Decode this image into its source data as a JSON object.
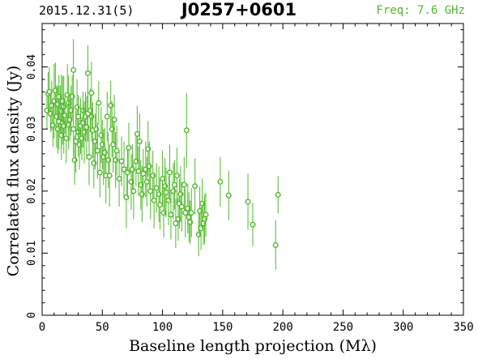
{
  "header": {
    "date": "2015.12.31(5)",
    "source": "J0257+0601",
    "freq": "Freq: 7.6 GHz"
  },
  "colors": {
    "series": "#4fb828",
    "axis": "#000000"
  },
  "chart_data": {
    "type": "scatter",
    "xlabel": "Baseline length projection (Mλ)",
    "ylabel": "Correlated flux density (Jy)",
    "xlim": [
      0,
      350
    ],
    "ylim": [
      0,
      0.047
    ],
    "xticks": [
      0,
      50,
      100,
      150,
      200,
      250,
      300,
      350
    ],
    "xtick_labels": [
      "0",
      "50",
      "100",
      "150",
      "200",
      "250",
      "300",
      "350"
    ],
    "yticks": [
      0,
      0.01,
      0.02,
      0.03,
      0.04
    ],
    "ytick_labels": [
      "0",
      "0.01",
      "0.02",
      "0.03",
      "0.04"
    ],
    "grid": false,
    "points": [
      {
        "x": 4,
        "y": 0.033,
        "e": 0.003
      },
      {
        "x": 5,
        "y": 0.0357,
        "e": 0.0035
      },
      {
        "x": 6,
        "y": 0.036,
        "e": 0.004
      },
      {
        "x": 7,
        "y": 0.0325,
        "e": 0.003
      },
      {
        "x": 8,
        "y": 0.0338,
        "e": 0.004
      },
      {
        "x": 9,
        "y": 0.0306,
        "e": 0.0035
      },
      {
        "x": 10,
        "y": 0.0345,
        "e": 0.006
      },
      {
        "x": 11,
        "y": 0.0362,
        "e": 0.0045
      },
      {
        "x": 12,
        "y": 0.032,
        "e": 0.005
      },
      {
        "x": 13,
        "y": 0.03,
        "e": 0.004
      },
      {
        "x": 13,
        "y": 0.034,
        "e": 0.003
      },
      {
        "x": 14,
        "y": 0.0312,
        "e": 0.0045
      },
      {
        "x": 14,
        "y": 0.0352,
        "e": 0.0035
      },
      {
        "x": 15,
        "y": 0.033,
        "e": 0.004
      },
      {
        "x": 16,
        "y": 0.0328,
        "e": 0.006
      },
      {
        "x": 16,
        "y": 0.029,
        "e": 0.004
      },
      {
        "x": 17,
        "y": 0.031,
        "e": 0.0035
      },
      {
        "x": 17,
        "y": 0.0345,
        "e": 0.004
      },
      {
        "x": 18,
        "y": 0.0336,
        "e": 0.005
      },
      {
        "x": 18,
        "y": 0.0305,
        "e": 0.0045
      },
      {
        "x": 19,
        "y": 0.0322,
        "e": 0.003
      },
      {
        "x": 20,
        "y": 0.0285,
        "e": 0.004
      },
      {
        "x": 21,
        "y": 0.0355,
        "e": 0.005
      },
      {
        "x": 22,
        "y": 0.0342,
        "e": 0.0045
      },
      {
        "x": 22,
        "y": 0.0307,
        "e": 0.004
      },
      {
        "x": 23,
        "y": 0.0315,
        "e": 0.0035
      },
      {
        "x": 24,
        "y": 0.033,
        "e": 0.004
      },
      {
        "x": 25,
        "y": 0.0352,
        "e": 0.0035
      },
      {
        "x": 26,
        "y": 0.0395,
        "e": 0.005
      },
      {
        "x": 26,
        "y": 0.03,
        "e": 0.0045
      },
      {
        "x": 27,
        "y": 0.025,
        "e": 0.004
      },
      {
        "x": 28,
        "y": 0.028,
        "e": 0.005
      },
      {
        "x": 29,
        "y": 0.0335,
        "e": 0.0045
      },
      {
        "x": 30,
        "y": 0.0295,
        "e": 0.004
      },
      {
        "x": 30,
        "y": 0.032,
        "e": 0.0035
      },
      {
        "x": 31,
        "y": 0.0275,
        "e": 0.004
      },
      {
        "x": 32,
        "y": 0.0305,
        "e": 0.0045
      },
      {
        "x": 33,
        "y": 0.0285,
        "e": 0.0035
      },
      {
        "x": 34,
        "y": 0.033,
        "e": 0.003
      },
      {
        "x": 34,
        "y": 0.031,
        "e": 0.004
      },
      {
        "x": 35,
        "y": 0.0295,
        "e": 0.005
      },
      {
        "x": 36,
        "y": 0.032,
        "e": 0.004
      },
      {
        "x": 37,
        "y": 0.0303,
        "e": 0.005
      },
      {
        "x": 38,
        "y": 0.0325,
        "e": 0.0045
      },
      {
        "x": 38,
        "y": 0.039,
        "e": 0.0045
      },
      {
        "x": 39,
        "y": 0.0255,
        "e": 0.0045
      },
      {
        "x": 40,
        "y": 0.033,
        "e": 0.0035
      },
      {
        "x": 41,
        "y": 0.032,
        "e": 0.004
      },
      {
        "x": 41,
        "y": 0.0358,
        "e": 0.005
      },
      {
        "x": 42,
        "y": 0.0298,
        "e": 0.0045
      },
      {
        "x": 43,
        "y": 0.0245,
        "e": 0.004
      },
      {
        "x": 44,
        "y": 0.028,
        "e": 0.0045
      },
      {
        "x": 45,
        "y": 0.03,
        "e": 0.004
      },
      {
        "x": 46,
        "y": 0.0265,
        "e": 0.0045
      },
      {
        "x": 47,
        "y": 0.0342,
        "e": 0.0035
      },
      {
        "x": 48,
        "y": 0.023,
        "e": 0.004
      },
      {
        "x": 49,
        "y": 0.029,
        "e": 0.0045
      },
      {
        "x": 50,
        "y": 0.0275,
        "e": 0.004
      },
      {
        "x": 51,
        "y": 0.0255,
        "e": 0.0045
      },
      {
        "x": 52,
        "y": 0.0262,
        "e": 0.004
      },
      {
        "x": 53,
        "y": 0.0225,
        "e": 0.0045
      },
      {
        "x": 54,
        "y": 0.032,
        "e": 0.004
      },
      {
        "x": 55,
        "y": 0.025,
        "e": 0.0045
      },
      {
        "x": 56,
        "y": 0.0225,
        "e": 0.005
      },
      {
        "x": 57,
        "y": 0.0338,
        "e": 0.004
      },
      {
        "x": 58,
        "y": 0.03,
        "e": 0.0045
      },
      {
        "x": 59,
        "y": 0.0275,
        "e": 0.0045
      },
      {
        "x": 60,
        "y": 0.0315,
        "e": 0.004
      },
      {
        "x": 61,
        "y": 0.025,
        "e": 0.0045
      },
      {
        "x": 62,
        "y": 0.0265,
        "e": 0.004
      },
      {
        "x": 64,
        "y": 0.022,
        "e": 0.0045
      },
      {
        "x": 66,
        "y": 0.0248,
        "e": 0.004
      },
      {
        "x": 68,
        "y": 0.0235,
        "e": 0.0045
      },
      {
        "x": 70,
        "y": 0.019,
        "e": 0.005
      },
      {
        "x": 71,
        "y": 0.023,
        "e": 0.004
      },
      {
        "x": 72,
        "y": 0.027,
        "e": 0.004
      },
      {
        "x": 74,
        "y": 0.0215,
        "e": 0.0045
      },
      {
        "x": 75,
        "y": 0.0235,
        "e": 0.004
      },
      {
        "x": 76,
        "y": 0.02,
        "e": 0.0045
      },
      {
        "x": 78,
        "y": 0.0248,
        "e": 0.004
      },
      {
        "x": 79,
        "y": 0.0292,
        "e": 0.0045
      },
      {
        "x": 80,
        "y": 0.0232,
        "e": 0.004
      },
      {
        "x": 81,
        "y": 0.028,
        "e": 0.0045
      },
      {
        "x": 82,
        "y": 0.021,
        "e": 0.004
      },
      {
        "x": 83,
        "y": 0.0195,
        "e": 0.0045
      },
      {
        "x": 84,
        "y": 0.0228,
        "e": 0.004
      },
      {
        "x": 86,
        "y": 0.0235,
        "e": 0.0045
      },
      {
        "x": 87,
        "y": 0.0215,
        "e": 0.004
      },
      {
        "x": 88,
        "y": 0.0268,
        "e": 0.0045
      },
      {
        "x": 89,
        "y": 0.024,
        "e": 0.004
      },
      {
        "x": 90,
        "y": 0.02,
        "e": 0.0045
      },
      {
        "x": 92,
        "y": 0.0225,
        "e": 0.004
      },
      {
        "x": 93,
        "y": 0.0185,
        "e": 0.0045
      },
      {
        "x": 95,
        "y": 0.0205,
        "e": 0.004
      },
      {
        "x": 97,
        "y": 0.0195,
        "e": 0.0045
      },
      {
        "x": 98,
        "y": 0.0178,
        "e": 0.004
      },
      {
        "x": 100,
        "y": 0.022,
        "e": 0.0045
      },
      {
        "x": 101,
        "y": 0.0165,
        "e": 0.004
      },
      {
        "x": 102,
        "y": 0.0208,
        "e": 0.0045
      },
      {
        "x": 103,
        "y": 0.0198,
        "e": 0.004
      },
      {
        "x": 105,
        "y": 0.0185,
        "e": 0.004
      },
      {
        "x": 106,
        "y": 0.023,
        "e": 0.0045
      },
      {
        "x": 107,
        "y": 0.0162,
        "e": 0.004
      },
      {
        "x": 109,
        "y": 0.02,
        "e": 0.0045
      },
      {
        "x": 110,
        "y": 0.021,
        "e": 0.004
      },
      {
        "x": 111,
        "y": 0.0148,
        "e": 0.004
      },
      {
        "x": 112,
        "y": 0.0225,
        "e": 0.0045
      },
      {
        "x": 113,
        "y": 0.0155,
        "e": 0.0035
      },
      {
        "x": 114,
        "y": 0.018,
        "e": 0.004
      },
      {
        "x": 115,
        "y": 0.0195,
        "e": 0.0045
      },
      {
        "x": 116,
        "y": 0.0175,
        "e": 0.004
      },
      {
        "x": 118,
        "y": 0.021,
        "e": 0.0045
      },
      {
        "x": 119,
        "y": 0.0165,
        "e": 0.004
      },
      {
        "x": 120,
        "y": 0.0298,
        "e": 0.006
      },
      {
        "x": 121,
        "y": 0.0172,
        "e": 0.004
      },
      {
        "x": 122,
        "y": 0.0158,
        "e": 0.004
      },
      {
        "x": 123,
        "y": 0.015,
        "e": 0.0035
      },
      {
        "x": 124,
        "y": 0.0165,
        "e": 0.004
      },
      {
        "x": 127,
        "y": 0.0208,
        "e": 0.0045
      },
      {
        "x": 130,
        "y": 0.013,
        "e": 0.0035
      },
      {
        "x": 131,
        "y": 0.0168,
        "e": 0.004
      },
      {
        "x": 132,
        "y": 0.014,
        "e": 0.0035
      },
      {
        "x": 133,
        "y": 0.018,
        "e": 0.004
      },
      {
        "x": 134,
        "y": 0.0148,
        "e": 0.0035
      },
      {
        "x": 135,
        "y": 0.0155,
        "e": 0.004
      },
      {
        "x": 136,
        "y": 0.0162,
        "e": 0.0035
      },
      {
        "x": 148,
        "y": 0.0215,
        "e": 0.004
      },
      {
        "x": 155,
        "y": 0.0193,
        "e": 0.004
      },
      {
        "x": 171,
        "y": 0.0183,
        "e": 0.0045
      },
      {
        "x": 175,
        "y": 0.0146,
        "e": 0.0035
      },
      {
        "x": 194,
        "y": 0.0113,
        "e": 0.004
      },
      {
        "x": 196,
        "y": 0.0194,
        "e": 0.003
      }
    ]
  }
}
